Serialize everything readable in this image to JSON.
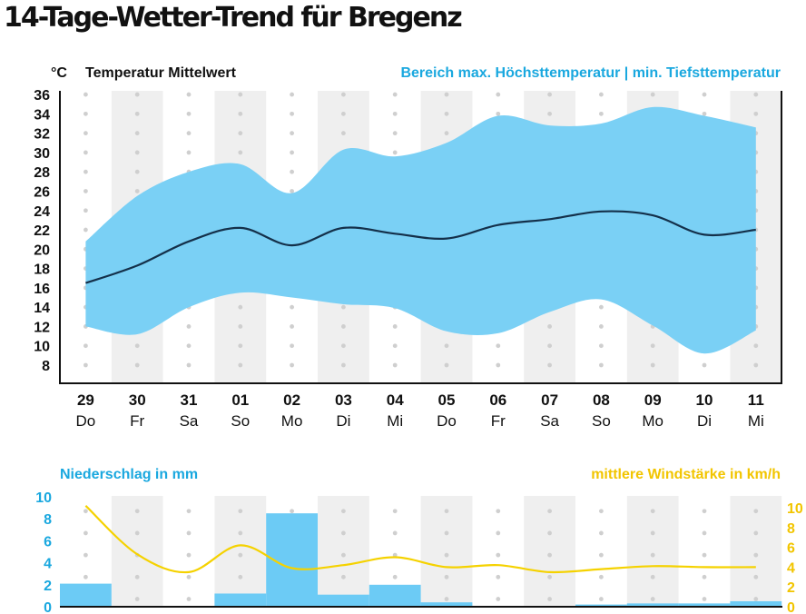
{
  "title": "14-Tage-Wetter-Trend für Bregenz",
  "colors": {
    "band": "#7ad0f5",
    "line": "#14304a",
    "precip": "#6ccbf5",
    "wind": "#f5d200",
    "stripe": "#efefef",
    "blue_text": "#1aa8df",
    "yellow_text": "#f2c500",
    "dots": "#cfcfcf"
  },
  "temp_chart": {
    "unit": "°C",
    "label_left": "Temperatur Mittelwert",
    "label_right": "Bereich max. Höchsttemperatur | min. Tiefsttemperatur"
  },
  "precip_chart": {
    "label_left": "Niederschlag in mm",
    "label_right": "mittlere Windstärke in km/h"
  },
  "chart_data": [
    {
      "type": "area",
      "ylabel": "°C",
      "ylim": [
        7,
        37
      ],
      "yticks": [
        8,
        10,
        12,
        14,
        16,
        18,
        20,
        22,
        24,
        26,
        28,
        30,
        32,
        34,
        36
      ],
      "categories": [
        "29",
        "30",
        "31",
        "01",
        "02",
        "03",
        "04",
        "05",
        "06",
        "07",
        "08",
        "09",
        "10",
        "11"
      ],
      "weekdays": [
        "Do",
        "Fr",
        "Sa",
        "So",
        "Mo",
        "Di",
        "Mi",
        "Do",
        "Fr",
        "Sa",
        "So",
        "Mo",
        "Di",
        "Mi"
      ],
      "grid": "dotted",
      "series": [
        {
          "name": "Temperatur Mittelwert",
          "values": [
            16.5,
            18.3,
            20.8,
            22.2,
            20.4,
            22.2,
            21.6,
            21.1,
            22.5,
            23.1,
            23.9,
            23.5,
            21.5,
            22.0
          ]
        },
        {
          "name": "max. Höchsttemperatur",
          "values": [
            20.8,
            25.5,
            28.0,
            28.8,
            25.8,
            30.3,
            29.6,
            31.0,
            33.8,
            32.8,
            33.0,
            34.7,
            33.8,
            32.6
          ]
        },
        {
          "name": "min. Tiefsttemperatur",
          "values": [
            12.0,
            11.2,
            14.0,
            15.5,
            15.0,
            14.3,
            13.9,
            11.5,
            11.3,
            13.5,
            14.8,
            12.1,
            9.2,
            11.6
          ]
        }
      ]
    },
    {
      "type": "bar",
      "categories": [
        "29",
        "30",
        "31",
        "01",
        "02",
        "03",
        "04",
        "05",
        "06",
        "07",
        "08",
        "09",
        "10",
        "11"
      ],
      "ylim_left": [
        0,
        10
      ],
      "yticks_left": [
        0,
        2,
        4,
        6,
        8,
        10
      ],
      "ylim_right": [
        0,
        11
      ],
      "yticks_right": [
        0,
        2,
        4,
        6,
        8,
        10
      ],
      "series": [
        {
          "name": "Niederschlag in mm",
          "type": "bar",
          "values": [
            2.1,
            0,
            0,
            1.2,
            8.5,
            1.1,
            2.0,
            0.4,
            0,
            0,
            0.2,
            0.3,
            0.3,
            0.5
          ]
        },
        {
          "name": "mittlere Windstärke in km/h",
          "type": "line",
          "values": [
            10.2,
            5.3,
            3.5,
            6.2,
            3.9,
            4.2,
            5.0,
            4.0,
            4.2,
            3.5,
            3.8,
            4.1,
            4.0,
            4.0
          ]
        }
      ]
    }
  ]
}
